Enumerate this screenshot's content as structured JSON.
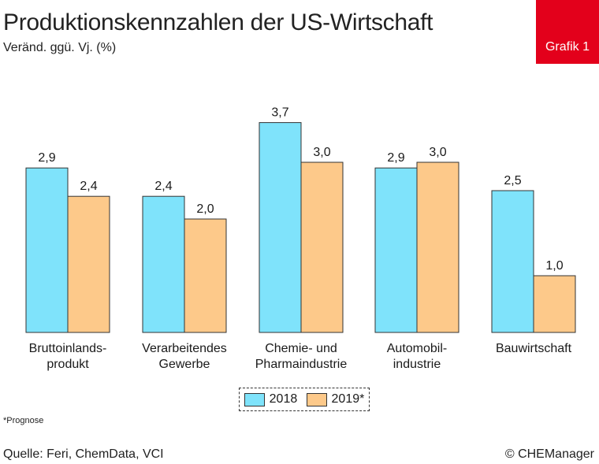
{
  "header": {
    "title": "Produktionskennzahlen der US-Wirtschaft",
    "subtitle": "Veränd. ggü. Vj. (%)",
    "badge": "Grafik 1"
  },
  "footer": {
    "footnote": "*Prognose",
    "source": "Quelle: Feri, ChemData, VCI",
    "copyright": "© CHEManager"
  },
  "colors": {
    "series_2018": "#7fe3fb",
    "series_2019": "#fdc98a",
    "badge": "#e3001b"
  },
  "chart_data": {
    "type": "bar",
    "title": "Produktionskennzahlen der US-Wirtschaft",
    "ylabel": "Veränd. ggü. Vj. (%)",
    "ylim": [
      0,
      3.7
    ],
    "grid": false,
    "legend_position": "bottom-center",
    "categories": [
      [
        "Bruttoinlands-",
        "produkt"
      ],
      [
        "Verarbeitendes",
        "Gewerbe"
      ],
      [
        "Chemie- und",
        "Pharmaindustrie"
      ],
      [
        "Automobil-",
        "industrie"
      ],
      [
        "Bauwirtschaft"
      ]
    ],
    "series": [
      {
        "name": "2018",
        "values": [
          2.9,
          2.4,
          3.7,
          2.9,
          2.5
        ],
        "labels": [
          "2,9",
          "2,4",
          "3,7",
          "2,9",
          "2,5"
        ]
      },
      {
        "name": "2019*",
        "values": [
          2.4,
          2.0,
          3.0,
          3.0,
          1.0
        ],
        "labels": [
          "2,4",
          "2,0",
          "3,0",
          "3,0",
          "1,0"
        ]
      }
    ]
  }
}
